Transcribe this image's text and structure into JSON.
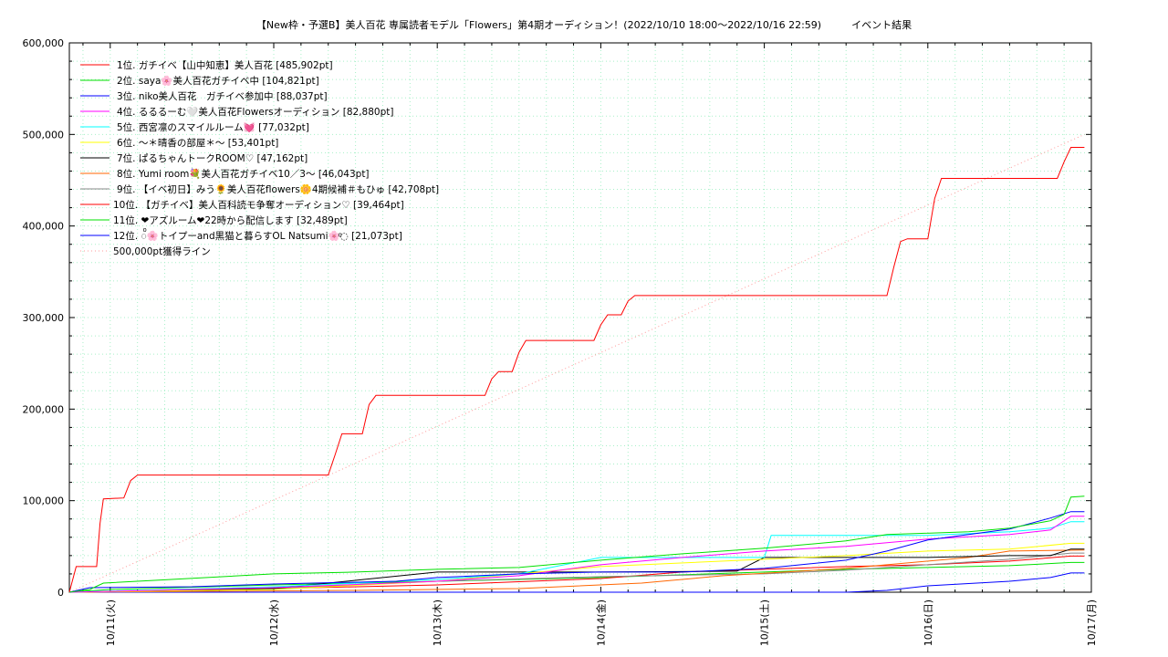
{
  "chart_data": {
    "type": "line",
    "title": "【New枠・予選B】美人百花 専属読者モデル「Flowers」第4期オーディション！(2022/10/10 18:00～2022/10/16 22:59)　　　イベント結果",
    "xlabel": "",
    "ylabel": "",
    "x_ticks": [
      "10/11(火)",
      "10/12(水)",
      "10/13(木)",
      "10/14(金)",
      "10/15(土)",
      "10/16(日)",
      "10/17(月)"
    ],
    "x_range": [
      "2022-10-10 18:00",
      "2022-10-17 00:00"
    ],
    "y_ticks": [
      "0",
      "100,000",
      "200,000",
      "300,000",
      "400,000",
      "500,000",
      "600,000"
    ],
    "ylim": [
      0,
      600000
    ],
    "grid": true,
    "legend_position": "top-left",
    "series": [
      {
        "name": "1位. ガチイベ【山中知恵】美人百花 [485,902pt]",
        "color": "#ff0000",
        "points": [
          [
            "2022-10-10 18:00",
            0
          ],
          [
            "2022-10-10 19:00",
            28000
          ],
          [
            "2022-10-10 22:00",
            28000
          ],
          [
            "2022-10-10 22:30",
            75000
          ],
          [
            "2022-10-10 23:00",
            102000
          ],
          [
            "2022-10-11 02:00",
            103000
          ],
          [
            "2022-10-11 03:00",
            122000
          ],
          [
            "2022-10-11 04:00",
            128000
          ],
          [
            "2022-10-11 12:00",
            128000
          ],
          [
            "2022-10-12 08:00",
            128000
          ],
          [
            "2022-10-12 09:00",
            150000
          ],
          [
            "2022-10-12 10:00",
            173000
          ],
          [
            "2022-10-12 13:00",
            173000
          ],
          [
            "2022-10-12 14:00",
            205000
          ],
          [
            "2022-10-12 15:00",
            215000
          ],
          [
            "2022-10-13 07:00",
            215000
          ],
          [
            "2022-10-13 08:00",
            233000
          ],
          [
            "2022-10-13 09:00",
            241000
          ],
          [
            "2022-10-13 11:00",
            241000
          ],
          [
            "2022-10-13 12:00",
            262000
          ],
          [
            "2022-10-13 13:00",
            275000
          ],
          [
            "2022-10-13 23:00",
            275000
          ],
          [
            "2022-10-14 00:00",
            292000
          ],
          [
            "2022-10-14 01:00",
            303000
          ],
          [
            "2022-10-14 03:00",
            303000
          ],
          [
            "2022-10-14 04:00",
            318000
          ],
          [
            "2022-10-14 05:00",
            324000
          ],
          [
            "2022-10-15 12:00",
            324000
          ],
          [
            "2022-10-15 18:00",
            324000
          ],
          [
            "2022-10-15 19:00",
            355000
          ],
          [
            "2022-10-15 20:00",
            383000
          ],
          [
            "2022-10-15 21:00",
            386000
          ],
          [
            "2022-10-16 00:00",
            386000
          ],
          [
            "2022-10-16 01:00",
            430000
          ],
          [
            "2022-10-16 02:00",
            452000
          ],
          [
            "2022-10-16 12:00",
            452000
          ],
          [
            "2022-10-16 19:00",
            452000
          ],
          [
            "2022-10-16 20:00",
            470000
          ],
          [
            "2022-10-16 21:00",
            485902
          ],
          [
            "2022-10-16 22:59",
            485902
          ]
        ]
      },
      {
        "name": "2位. saya🌸美人百花ガチイベ中 [104,821pt]",
        "color": "#00e000",
        "points": [
          [
            "2022-10-10 18:00",
            0
          ],
          [
            "2022-10-10 21:00",
            3000
          ],
          [
            "2022-10-10 23:00",
            10000
          ],
          [
            "2022-10-11 09:00",
            14000
          ],
          [
            "2022-10-12 00:00",
            20000
          ],
          [
            "2022-10-12 12:00",
            22000
          ],
          [
            "2022-10-13 00:00",
            25000
          ],
          [
            "2022-10-13 12:00",
            27000
          ],
          [
            "2022-10-14 00:00",
            35000
          ],
          [
            "2022-10-14 12:00",
            42000
          ],
          [
            "2022-10-15 00:00",
            48000
          ],
          [
            "2022-10-15 12:00",
            56000
          ],
          [
            "2022-10-15 18:00",
            63000
          ],
          [
            "2022-10-16 06:00",
            66000
          ],
          [
            "2022-10-16 12:00",
            70000
          ],
          [
            "2022-10-16 18:00",
            78000
          ],
          [
            "2022-10-16 20:00",
            85000
          ],
          [
            "2022-10-16 21:00",
            104000
          ],
          [
            "2022-10-16 22:59",
            104821
          ]
        ]
      },
      {
        "name": "3位. niko美人百花　ガチイベ参加中 [88,037pt]",
        "color": "#0000ff",
        "points": [
          [
            "2022-10-10 18:00",
            0
          ],
          [
            "2022-10-10 21:00",
            5000
          ],
          [
            "2022-10-11 12:00",
            6000
          ],
          [
            "2022-10-12 00:00",
            9000
          ],
          [
            "2022-10-12 18:00",
            12000
          ],
          [
            "2022-10-13 00:00",
            16000
          ],
          [
            "2022-10-13 12:00",
            20000
          ],
          [
            "2022-10-14 00:00",
            22000
          ],
          [
            "2022-10-14 12:00",
            22000
          ],
          [
            "2022-10-15 00:00",
            26000
          ],
          [
            "2022-10-15 12:00",
            35000
          ],
          [
            "2022-10-15 18:00",
            45000
          ],
          [
            "2022-10-16 00:00",
            57000
          ],
          [
            "2022-10-16 12:00",
            69000
          ],
          [
            "2022-10-16 18:00",
            81000
          ],
          [
            "2022-10-16 21:00",
            88037
          ],
          [
            "2022-10-16 22:59",
            88037
          ]
        ]
      },
      {
        "name": "4位. るるるーむ🤍美人百花Flowersオーディション [82,880pt]",
        "color": "#ff00ff",
        "points": [
          [
            "2022-10-10 18:00",
            0
          ],
          [
            "2022-10-12 00:00",
            5000
          ],
          [
            "2022-10-13 00:00",
            12000
          ],
          [
            "2022-10-13 12:00",
            18000
          ],
          [
            "2022-10-14 00:00",
            30000
          ],
          [
            "2022-10-14 12:00",
            38000
          ],
          [
            "2022-10-15 00:00",
            45000
          ],
          [
            "2022-10-15 12:00",
            50000
          ],
          [
            "2022-10-16 00:00",
            58000
          ],
          [
            "2022-10-16 12:00",
            63000
          ],
          [
            "2022-10-16 18:00",
            68000
          ],
          [
            "2022-10-16 21:00",
            82880
          ],
          [
            "2022-10-16 22:59",
            82880
          ]
        ]
      },
      {
        "name": "5位. 西宮凛のスマイルルーム💓 [77,032pt]",
        "color": "#00ffff",
        "points": [
          [
            "2022-10-10 18:00",
            0
          ],
          [
            "2022-10-12 00:00",
            6000
          ],
          [
            "2022-10-13 00:00",
            14000
          ],
          [
            "2022-10-13 12:00",
            20000
          ],
          [
            "2022-10-14 00:00",
            38000
          ],
          [
            "2022-10-15 00:00",
            38000
          ],
          [
            "2022-10-15 01:00",
            62000
          ],
          [
            "2022-10-16 00:00",
            62000
          ],
          [
            "2022-10-16 12:00",
            66000
          ],
          [
            "2022-10-16 18:00",
            70000
          ],
          [
            "2022-10-16 21:00",
            77032
          ],
          [
            "2022-10-16 22:59",
            77032
          ]
        ]
      },
      {
        "name": "6位. ～＊晴香の部屋＊～ [53,401pt]",
        "color": "#ffff00",
        "points": [
          [
            "2022-10-10 18:00",
            0
          ],
          [
            "2022-10-12 00:00",
            3000
          ],
          [
            "2022-10-13 00:00",
            12000
          ],
          [
            "2022-10-14 00:00",
            28000
          ],
          [
            "2022-10-15 00:00",
            36000
          ],
          [
            "2022-10-15 12:00",
            40000
          ],
          [
            "2022-10-16 00:00",
            45000
          ],
          [
            "2022-10-16 12:00",
            47000
          ],
          [
            "2022-10-16 21:00",
            53401
          ],
          [
            "2022-10-16 22:59",
            53401
          ]
        ]
      },
      {
        "name": "7位. ぱるちゃんトークROOM♡ [47,162pt]",
        "color": "#000000",
        "points": [
          [
            "2022-10-10 18:00",
            0
          ],
          [
            "2022-10-12 00:00",
            4000
          ],
          [
            "2022-10-13 00:00",
            22000
          ],
          [
            "2022-10-14 00:00",
            22000
          ],
          [
            "2022-10-14 20:00",
            23000
          ],
          [
            "2022-10-15 00:00",
            38000
          ],
          [
            "2022-10-16 00:00",
            38000
          ],
          [
            "2022-10-16 12:00",
            40000
          ],
          [
            "2022-10-16 18:00",
            40000
          ],
          [
            "2022-10-16 21:00",
            47162
          ],
          [
            "2022-10-16 22:59",
            47162
          ]
        ]
      },
      {
        "name": "8位. Yumi room💐美人百花ガチイベ10／3～ [46,043pt]",
        "color": "#ff6600",
        "points": [
          [
            "2022-10-10 18:00",
            0
          ],
          [
            "2022-10-12 12:00",
            2000
          ],
          [
            "2022-10-13 12:00",
            4000
          ],
          [
            "2022-10-14 06:00",
            10000
          ],
          [
            "2022-10-14 18:00",
            18000
          ],
          [
            "2022-10-15 12:00",
            26000
          ],
          [
            "2022-10-16 06:00",
            38000
          ],
          [
            "2022-10-16 12:00",
            45000
          ],
          [
            "2022-10-16 22:59",
            46043
          ]
        ]
      },
      {
        "name": "9位. 【イベ初日】みう🌻美人百花flowers🌼4期候補＃もひゅ [42,708pt]",
        "color": "#888888",
        "points": [
          [
            "2022-10-10 18:00",
            0
          ],
          [
            "2022-10-12 00:00",
            4000
          ],
          [
            "2022-10-13 00:00",
            12000
          ],
          [
            "2022-10-14 00:00",
            17000
          ],
          [
            "2022-10-15 00:00",
            20000
          ],
          [
            "2022-10-15 12:00",
            24000
          ],
          [
            "2022-10-16 00:00",
            30000
          ],
          [
            "2022-10-16 12:00",
            36000
          ],
          [
            "2022-10-16 21:00",
            42708
          ],
          [
            "2022-10-16 22:59",
            42708
          ]
        ]
      },
      {
        "name": "10位. 【ガチイベ】美人百科読モ争奪オーディション♡ [39,464pt]",
        "color": "#ff0000",
        "points": [
          [
            "2022-10-10 18:00",
            0
          ],
          [
            "2022-10-12 00:00",
            4000
          ],
          [
            "2022-10-13 00:00",
            8000
          ],
          [
            "2022-10-14 00:00",
            15000
          ],
          [
            "2022-10-14 12:00",
            22000
          ],
          [
            "2022-10-15 00:00",
            25000
          ],
          [
            "2022-10-15 12:00",
            28000
          ],
          [
            "2022-10-16 00:00",
            30000
          ],
          [
            "2022-10-16 12:00",
            34000
          ],
          [
            "2022-10-16 21:00",
            39464
          ],
          [
            "2022-10-16 22:59",
            39464
          ]
        ]
      },
      {
        "name": "11位. ❤アズルーム❤22時から配信します [32,489pt]",
        "color": "#00e000",
        "points": [
          [
            "2022-10-10 18:00",
            0
          ],
          [
            "2022-10-11 00:00",
            3000
          ],
          [
            "2022-10-12 00:00",
            8000
          ],
          [
            "2022-10-13 00:00",
            12000
          ],
          [
            "2022-10-14 00:00",
            16000
          ],
          [
            "2022-10-15 00:00",
            22000
          ],
          [
            "2022-10-15 12:00",
            25000
          ],
          [
            "2022-10-16 00:00",
            27000
          ],
          [
            "2022-10-16 12:00",
            29000
          ],
          [
            "2022-10-16 21:00",
            32489
          ],
          [
            "2022-10-16 22:59",
            32489
          ]
        ]
      },
      {
        "name": "12位. ◌ͦ🌸トイプーand黒猫と暮らすOL Natsumi🌸ͦ◌ [21,073pt]",
        "color": "#0000ff",
        "points": [
          [
            "2022-10-10 18:00",
            0
          ],
          [
            "2022-10-15 12:00",
            0
          ],
          [
            "2022-10-15 18:00",
            2000
          ],
          [
            "2022-10-16 00:00",
            7000
          ],
          [
            "2022-10-16 12:00",
            12000
          ],
          [
            "2022-10-16 18:00",
            16000
          ],
          [
            "2022-10-16 21:00",
            21073
          ],
          [
            "2022-10-16 22:59",
            21073
          ]
        ]
      },
      {
        "name": "500,000pt獲得ライン",
        "color": "#ff9999",
        "dotted": true,
        "points": [
          [
            "2022-10-10 18:00",
            0
          ],
          [
            "2022-10-16 22:59",
            500000
          ]
        ]
      }
    ]
  }
}
